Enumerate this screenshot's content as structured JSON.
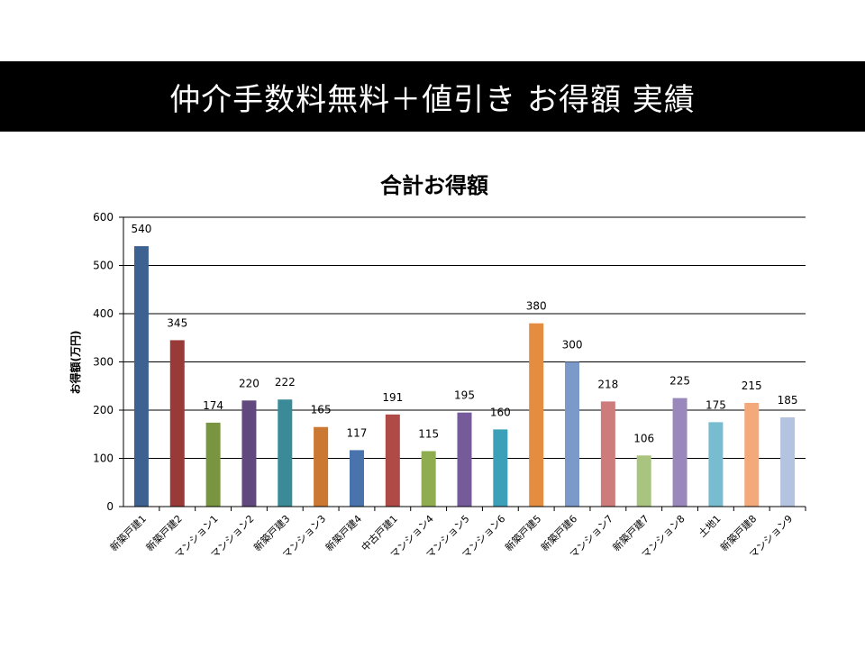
{
  "slide": {
    "title": "仲介手数料無料＋値引き お得額 実績"
  },
  "chart_data": {
    "type": "bar",
    "title": "合計お得額",
    "xlabel": "",
    "ylabel": "お得額(万円)",
    "ylim": [
      0,
      600
    ],
    "yticks": [
      0,
      100,
      200,
      300,
      400,
      500,
      600
    ],
    "grid": true,
    "legend": "none",
    "categories": [
      "新築戸建1",
      "新築戸建2",
      "マンション1",
      "マンション2",
      "新築戸建3",
      "マンション3",
      "新築戸建4",
      "中古戸建1",
      "マンション4",
      "マンション5",
      "マンション6",
      "新築戸建5",
      "新築戸建6",
      "マンション7",
      "新築戸建7",
      "マンション8",
      "土地1",
      "新築戸建8",
      "マンション9"
    ],
    "values": [
      540,
      345,
      174,
      220,
      222,
      165,
      117,
      191,
      115,
      195,
      160,
      380,
      300,
      218,
      106,
      225,
      175,
      215,
      185
    ],
    "colors": [
      "#3d6291",
      "#983b38",
      "#7a9540",
      "#61497f",
      "#3a8a97",
      "#cb7932",
      "#4973ad",
      "#b04a47",
      "#8fad4f",
      "#765b9b",
      "#3ba0b8",
      "#e48c3f",
      "#7b99c9",
      "#cd7b7b",
      "#a9c47f",
      "#9a88bd",
      "#78bcd0",
      "#f3a97a",
      "#b4c3e0"
    ]
  }
}
